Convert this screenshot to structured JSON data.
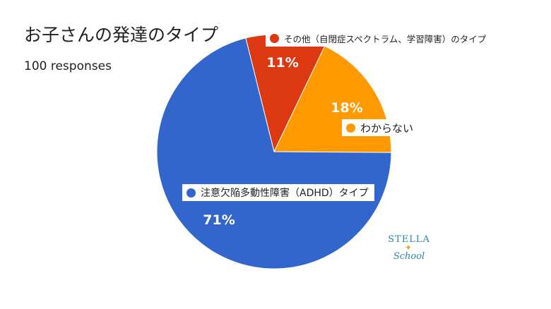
{
  "title": "お子さんの発達のタイプ",
  "subtitle": "100 responses",
  "logo": {
    "top": "STELLA",
    "bottom": "School",
    "star_icon": "star-icon"
  },
  "colors": {
    "adhd": "#3366cc",
    "other": "#dc3912",
    "unknown": "#ff9900"
  },
  "chart_data": {
    "type": "pie",
    "title": "お子さんの発達のタイプ",
    "slices": [
      {
        "label": "注意欠陥多動性障害（ADHD）タイプ",
        "value": 71,
        "percent_label": "71%",
        "color": "#3366cc"
      },
      {
        "label": "その他（自閉症スペクトラム、学習障害）のタイプ",
        "value": 11,
        "percent_label": "11%",
        "color": "#dc3912"
      },
      {
        "label": "わからない",
        "value": 18,
        "percent_label": "18%",
        "color": "#ff9900"
      }
    ]
  }
}
